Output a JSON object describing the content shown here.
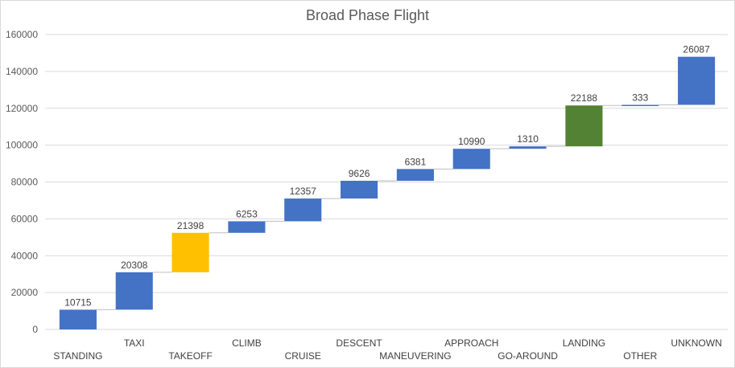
{
  "chart_data": {
    "type": "bar",
    "subtype": "waterfall",
    "title": "Broad Phase Flight",
    "xlabel": "",
    "ylabel": "",
    "ylim": [
      0,
      160000
    ],
    "yticks": [
      "0",
      "20000",
      "40000",
      "60000",
      "80000",
      "100000",
      "120000",
      "140000",
      "160000"
    ],
    "grid": true,
    "legend": "none",
    "categories": [
      "STANDING",
      "TAXI",
      "TAKEOFF",
      "CLIMB",
      "CRUISE",
      "DESCENT",
      "MANEUVERING",
      "APPROACH",
      "GO-AROUND",
      "LANDING",
      "OTHER",
      "UNKNOWN"
    ],
    "values": [
      10715,
      20308,
      21398,
      6253,
      12357,
      9626,
      6381,
      10990,
      1310,
      22188,
      333,
      26087
    ],
    "colors": {
      "default": "#4472c4",
      "TAKEOFF": "#ffc000",
      "LANDING": "#548235",
      "grid": "#d9d9d9",
      "connector": "#bfbfbf"
    }
  }
}
